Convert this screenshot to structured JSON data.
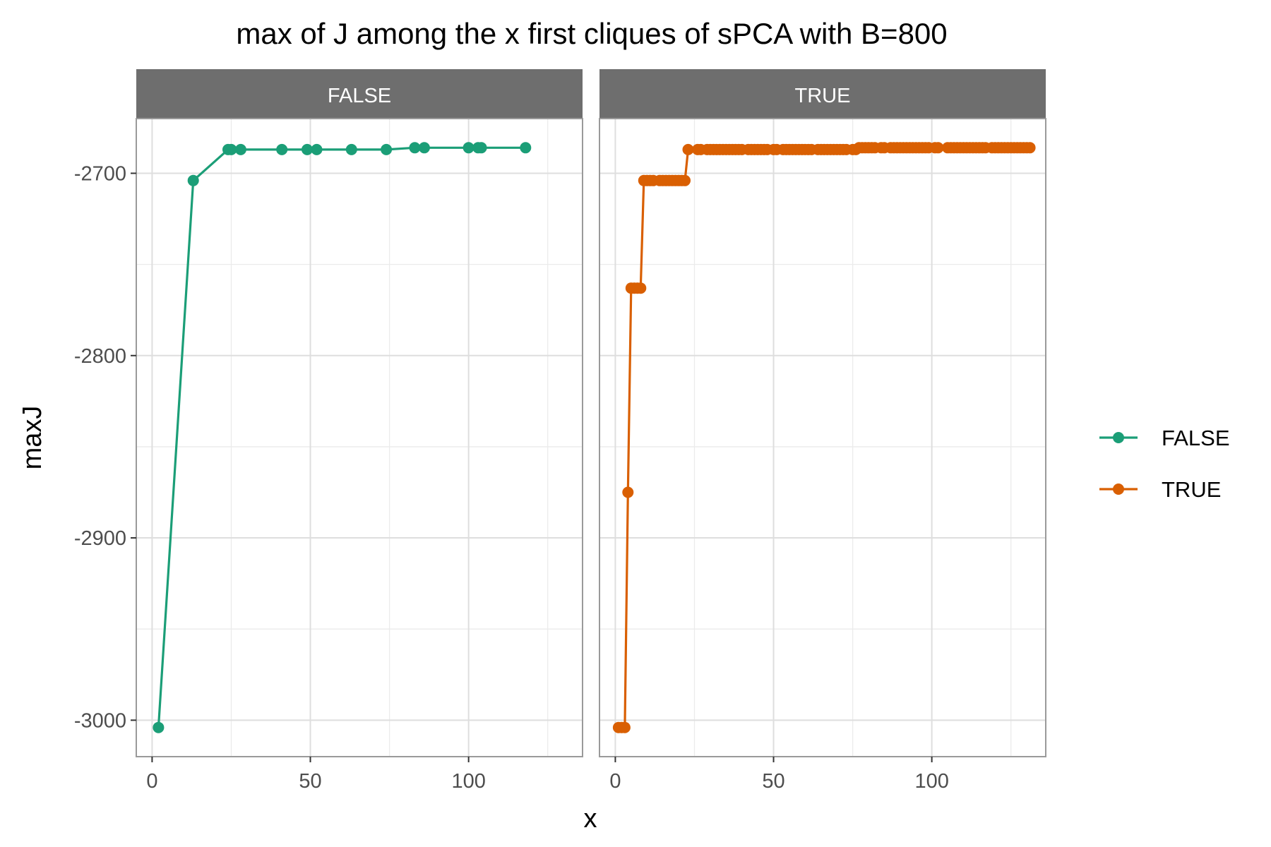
{
  "chart_data": {
    "type": "line",
    "title": "max of J among the x first cliques of sPCA with B=800",
    "xlabel": "x",
    "ylabel": "maxJ",
    "xlim": [
      -5,
      136
    ],
    "ylim": [
      -3020,
      -2670
    ],
    "x_ticks": [
      0,
      50,
      100
    ],
    "y_ticks": [
      -3000,
      -2900,
      -2800,
      -2700
    ],
    "x_tick_labels": [
      "0",
      "50",
      "100"
    ],
    "y_tick_labels": [
      "-3000",
      "-2900",
      "-2800",
      "-2700"
    ],
    "grid": true,
    "legend_position": "right",
    "panels": [
      {
        "strip_label": "FALSE",
        "series": "FALSE",
        "color": "#1B9E77",
        "x": [
          2,
          13,
          24,
          25,
          28,
          41,
          49,
          52,
          63,
          74,
          83,
          86,
          100,
          103,
          104,
          118
        ],
        "y": [
          -3004,
          -2704,
          -2687,
          -2687,
          -2687,
          -2687,
          -2687,
          -2687,
          -2687,
          -2687,
          -2686,
          -2686,
          -2686,
          -2686,
          -2686,
          -2686
        ]
      },
      {
        "strip_label": "TRUE",
        "series": "TRUE",
        "color": "#D95F02",
        "x": [
          1,
          2,
          3,
          4,
          5,
          6,
          7,
          8,
          9,
          10,
          11,
          12,
          14,
          15,
          16,
          17,
          18,
          19,
          20,
          21,
          22,
          23,
          26,
          27,
          29,
          30,
          31,
          32,
          33,
          34,
          35,
          36,
          37,
          38,
          39,
          40,
          42,
          43,
          44,
          45,
          46,
          47,
          48,
          50,
          51,
          53,
          54,
          55,
          56,
          57,
          58,
          59,
          60,
          61,
          62,
          64,
          65,
          66,
          67,
          68,
          69,
          70,
          71,
          72,
          73,
          75,
          76,
          77,
          78,
          79,
          80,
          81,
          82,
          84,
          85,
          87,
          88,
          89,
          90,
          91,
          92,
          93,
          94,
          95,
          96,
          97,
          98,
          99,
          101,
          102,
          105,
          106,
          107,
          108,
          109,
          110,
          111,
          112,
          113,
          114,
          115,
          116,
          117,
          119,
          120,
          121,
          122,
          123,
          124,
          125,
          126,
          127,
          128,
          129,
          130,
          131
        ],
        "y": [
          -3004,
          -3004,
          -3004,
          -2875,
          -2763,
          -2763,
          -2763,
          -2763,
          -2704,
          -2704,
          -2704,
          -2704,
          -2704,
          -2704,
          -2704,
          -2704,
          -2704,
          -2704,
          -2704,
          -2704,
          -2704,
          -2687,
          -2687,
          -2687,
          -2687,
          -2687,
          -2687,
          -2687,
          -2687,
          -2687,
          -2687,
          -2687,
          -2687,
          -2687,
          -2687,
          -2687,
          -2687,
          -2687,
          -2687,
          -2687,
          -2687,
          -2687,
          -2687,
          -2687,
          -2687,
          -2687,
          -2687,
          -2687,
          -2687,
          -2687,
          -2687,
          -2687,
          -2687,
          -2687,
          -2687,
          -2687,
          -2687,
          -2687,
          -2687,
          -2687,
          -2687,
          -2687,
          -2687,
          -2687,
          -2687,
          -2687,
          -2687,
          -2686,
          -2686,
          -2686,
          -2686,
          -2686,
          -2686,
          -2686,
          -2686,
          -2686,
          -2686,
          -2686,
          -2686,
          -2686,
          -2686,
          -2686,
          -2686,
          -2686,
          -2686,
          -2686,
          -2686,
          -2686,
          -2686,
          -2686,
          -2686,
          -2686,
          -2686,
          -2686,
          -2686,
          -2686,
          -2686,
          -2686,
          -2686,
          -2686,
          -2686,
          -2686,
          -2686,
          -2686,
          -2686,
          -2686,
          -2686,
          -2686,
          -2686,
          -2686,
          -2686,
          -2686,
          -2686,
          -2686,
          -2686,
          -2686
        ]
      }
    ],
    "legend": [
      {
        "label": "FALSE",
        "color": "#1B9E77"
      },
      {
        "label": "TRUE",
        "color": "#D95F02"
      }
    ]
  }
}
